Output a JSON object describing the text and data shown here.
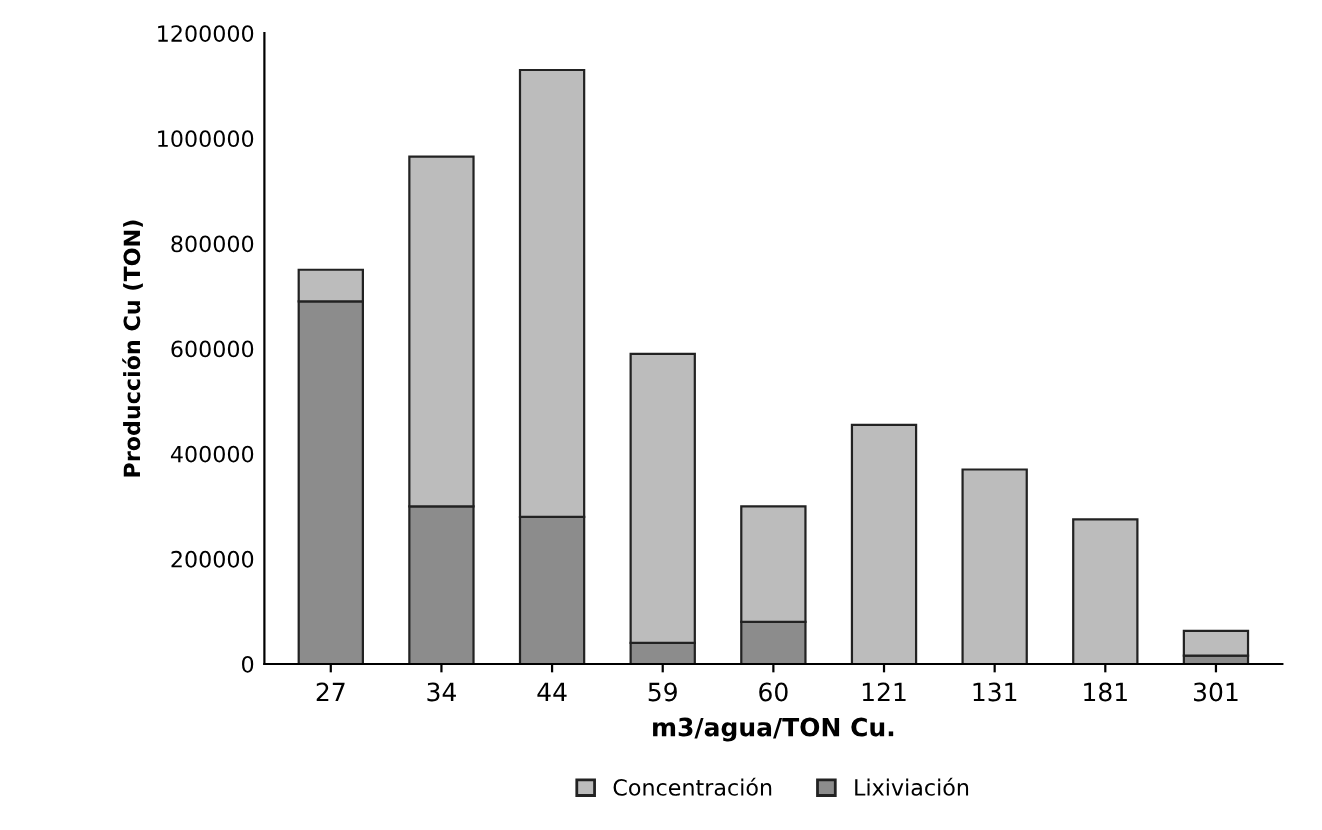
{
  "chart_data": {
    "type": "bar",
    "stacked": true,
    "xlabel": "m3/agua/TON Cu.",
    "ylabel": "Producción Cu (TON)",
    "categories": [
      "27",
      "34",
      "44",
      "59",
      "60",
      "121",
      "131",
      "181",
      "301"
    ],
    "series": [
      {
        "name": "Lixiviación",
        "color": "#8c8c8c",
        "values": [
          690000,
          300000,
          280000,
          40000,
          80000,
          0,
          0,
          0,
          16000
        ]
      },
      {
        "name": "Concentración",
        "color": "#bcbcbc",
        "values": [
          60000,
          665000,
          850000,
          550000,
          220000,
          455000,
          370000,
          275000,
          47000
        ]
      }
    ],
    "ylim": [
      0,
      1200000
    ],
    "yticks": [
      0,
      200000,
      400000,
      600000,
      800000,
      1000000,
      1200000
    ],
    "grid": false,
    "legend": "bottom"
  }
}
